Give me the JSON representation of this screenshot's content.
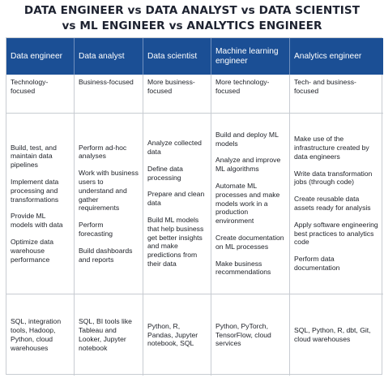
{
  "title": {
    "line1": "DATA ENGINEER vs DATA ANALYST vs DATA SCIENTIST",
    "line2": "vs ML ENGINEER vs ANALYTICS ENGINEER"
  },
  "colors": {
    "header_bg": "#1b4f95",
    "header_text": "#ffffff",
    "border": "#c8ccd2"
  },
  "columns": [
    {
      "header": "Data engineer",
      "focus": "Technology-focused",
      "tasks": [
        "Build, test, and maintain data pipelines",
        "Implement data processing and transformations",
        "Provide ML models with data",
        "Optimize data warehouse performance"
      ],
      "tools": "SQL, integration tools, Hadoop, Python, cloud warehouses"
    },
    {
      "header": "Data analyst",
      "focus": "Business-focused",
      "tasks": [
        "Perform ad-hoc analyses",
        "Work with business users to understand and gather requirements",
        "Perform forecasting",
        "Build dashboards and reports"
      ],
      "tools": "SQL, BI tools like Tableau and Looker, Jupyter notebook"
    },
    {
      "header": "Data scientist",
      "focus": "More business-focused",
      "tasks": [
        "Analyze collected data",
        "Define data processing",
        "Prepare and clean data",
        "Build ML models that help business get better insights and make predictions from their data"
      ],
      "tools": "Python, R, Pandas, Jupyter notebook, SQL"
    },
    {
      "header": "Machine learning engineer",
      "focus": "More technology-focused",
      "tasks": [
        "Build and deploy ML models",
        "Analyze and improve ML algorithms",
        "Automate ML processes and make models work in a production environment",
        "Create documentation on ML processes",
        "Make business recommendations"
      ],
      "tools": "Python, PyTorch, TensorFlow, cloud services"
    },
    {
      "header": "Analytics engineer",
      "focus": "Tech- and business-focused",
      "tasks": [
        "Make use of the infrastructure created by data engineers",
        "Write data transformation jobs (through code)",
        "Create reusable data assets ready for analysis",
        "Apply software engineering best practices to analytics code",
        "Perform data documentation"
      ],
      "tools": "SQL, Python, R, dbt, Git, cloud warehouses"
    }
  ]
}
